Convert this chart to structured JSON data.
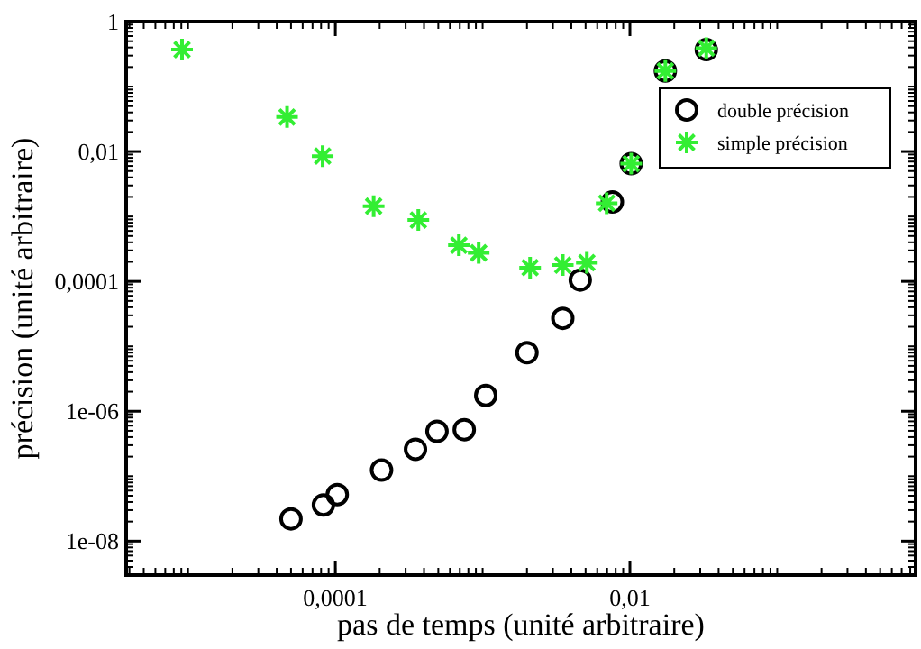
{
  "chart_data": {
    "type": "scatter",
    "xlabel": "pas de temps (unité arbitraire)",
    "ylabel": "précision (unité arbitraire)",
    "log": "xy",
    "grid": false,
    "legend": "top right",
    "xlim": [
      3.8e-06,
      0.87
    ],
    "ylim": [
      3e-09,
      1
    ],
    "xticks": [
      {
        "value": 0.0001,
        "label": "0,0001"
      },
      {
        "value": 0.01,
        "label": "0,01"
      }
    ],
    "yticks": [
      {
        "value": 1e-08,
        "label": "1e-08"
      },
      {
        "value": 1e-06,
        "label": "1e-06"
      },
      {
        "value": 0.0001,
        "label": "0,0001"
      },
      {
        "value": 0.01,
        "label": "0,01"
      },
      1
    ],
    "series": [
      {
        "name": "double précision",
        "color": "#000000",
        "marker": "circle",
        "x": [
          5e-05,
          8.3e-05,
          0.000103,
          0.000206,
          0.00035,
          0.00049,
          0.00075,
          0.00105,
          0.002,
          0.0035,
          0.0046,
          0.0076,
          0.0102,
          0.0174,
          0.033
        ],
        "values": [
          2.2e-08,
          3.6e-08,
          5.2e-08,
          1.24e-07,
          2.6e-07,
          4.9e-07,
          5.2e-07,
          1.75e-06,
          8e-06,
          2.7e-05,
          0.000105,
          0.00167,
          0.0065,
          0.174,
          0.37
        ]
      },
      {
        "name": "simple précision",
        "color": "#33ee33",
        "marker": "cross",
        "x": [
          9.1e-06,
          4.7e-05,
          8.2e-05,
          0.000182,
          0.000366,
          0.00069,
          0.00094,
          0.0021,
          0.0035,
          0.0051,
          0.00695,
          0.0102,
          0.0174,
          0.033
        ],
        "values": [
          0.37,
          0.034,
          0.0085,
          0.00144,
          0.00088,
          0.00036,
          0.000275,
          0.000163,
          0.000178,
          0.000194,
          0.0016,
          0.0065,
          0.174,
          0.39
        ]
      }
    ]
  }
}
